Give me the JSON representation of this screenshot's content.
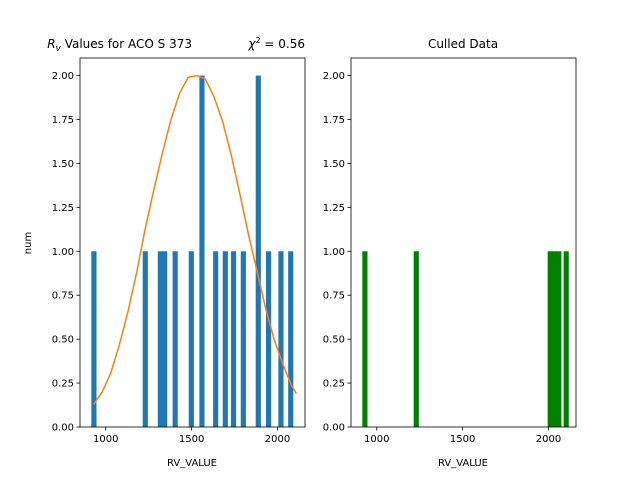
{
  "chart_data": [
    {
      "type": "bar",
      "title_prefix": "R",
      "title_subscript": "v",
      "title_rest": " Values for ACO S  373",
      "title_right_symbol": "χ",
      "title_right_sup": "2",
      "title_right_value": " = 0.56",
      "xlabel": "RV_VALUE",
      "ylabel": "num",
      "xlim": [
        850,
        2160
      ],
      "ylim": [
        0,
        2.1
      ],
      "xticks": [
        1000,
        1500,
        2000
      ],
      "xtick_labels": [
        "1000",
        "1500",
        "2000"
      ],
      "yticks": [
        0,
        0.25,
        0.5,
        0.75,
        1.0,
        1.25,
        1.5,
        1.75,
        2.0
      ],
      "ytick_labels": [
        "0.00",
        "0.25",
        "0.50",
        "0.75",
        "1.00",
        "1.25",
        "1.50",
        "1.75",
        "2.00"
      ],
      "bar_color": "#1f77b4",
      "bars": [
        {
          "x0": 916,
          "x1": 946,
          "value": 1
        },
        {
          "x0": 1215,
          "x1": 1245,
          "value": 1
        },
        {
          "x0": 1303,
          "x1": 1333,
          "value": 1
        },
        {
          "x0": 1328,
          "x1": 1358,
          "value": 1
        },
        {
          "x0": 1389,
          "x1": 1419,
          "value": 1
        },
        {
          "x0": 1483,
          "x1": 1513,
          "value": 1
        },
        {
          "x0": 1545,
          "x1": 1575,
          "value": 2
        },
        {
          "x0": 1625,
          "x1": 1655,
          "value": 1
        },
        {
          "x0": 1681,
          "x1": 1711,
          "value": 1
        },
        {
          "x0": 1729,
          "x1": 1759,
          "value": 1
        },
        {
          "x0": 1786,
          "x1": 1816,
          "value": 1
        },
        {
          "x0": 1873,
          "x1": 1903,
          "value": 2
        },
        {
          "x0": 1933,
          "x1": 1963,
          "value": 1
        },
        {
          "x0": 2005,
          "x1": 2035,
          "value": 1
        },
        {
          "x0": 2062,
          "x1": 2092,
          "value": 1
        }
      ],
      "fit_line": {
        "color": "#ff7f0e",
        "x": [
          930,
          980,
          1030,
          1080,
          1130,
          1180,
          1230,
          1280,
          1330,
          1380,
          1430,
          1480,
          1530,
          1580,
          1630,
          1680,
          1730,
          1780,
          1830,
          1880,
          1930,
          1980,
          2030,
          2080,
          2110
        ],
        "y": [
          0.13,
          0.2,
          0.31,
          0.47,
          0.66,
          0.88,
          1.13,
          1.35,
          1.56,
          1.75,
          1.9,
          1.99,
          2.0,
          1.98,
          1.88,
          1.74,
          1.55,
          1.33,
          1.1,
          0.89,
          0.68,
          0.5,
          0.36,
          0.24,
          0.19
        ]
      }
    },
    {
      "type": "bar",
      "title": "Culled Data",
      "xlabel": "RV_VALUE",
      "xlim": [
        850,
        2160
      ],
      "ylim": [
        0,
        2.1
      ],
      "xticks": [
        1000,
        1500,
        2000
      ],
      "xtick_labels": [
        "1000",
        "1500",
        "2000"
      ],
      "yticks": [
        0,
        0.25,
        0.5,
        0.75,
        1.0,
        1.25,
        1.5,
        1.75,
        2.0
      ],
      "ytick_labels": [
        "0.00",
        "0.25",
        "0.50",
        "0.75",
        "1.00",
        "1.25",
        "1.50",
        "1.75",
        "2.00"
      ],
      "bar_color": "#008000",
      "bars": [
        {
          "x0": 916,
          "x1": 946,
          "value": 1
        },
        {
          "x0": 1215,
          "x1": 1245,
          "value": 1
        },
        {
          "x0": 1995,
          "x1": 2025,
          "value": 1
        },
        {
          "x0": 2020,
          "x1": 2050,
          "value": 1
        },
        {
          "x0": 2045,
          "x1": 2075,
          "value": 1
        },
        {
          "x0": 2088,
          "x1": 2118,
          "value": 1
        }
      ]
    }
  ]
}
